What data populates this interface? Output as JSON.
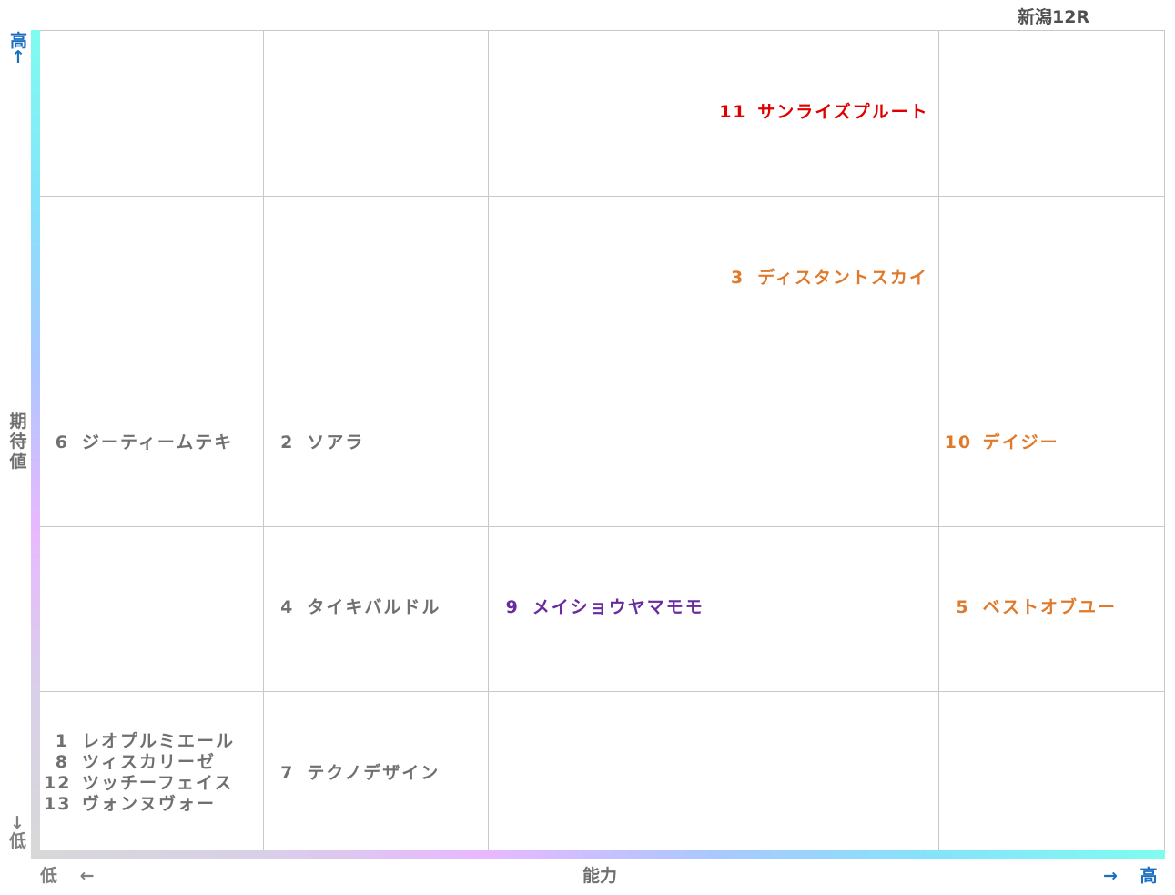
{
  "chart_data": {
    "type": "table",
    "title": "新潟12R",
    "ylabel": "期待値",
    "xlabel": "能力",
    "y_high_label": "高",
    "y_high_arrow": "↑",
    "y_low_label": "低",
    "y_low_arrow": "↓",
    "x_low_label": "低",
    "x_low_arrow": "←",
    "x_high_label": "高",
    "x_high_arrow": "→",
    "columns": 5,
    "rows": 5,
    "entries": [
      {
        "num": "11",
        "name": "サンライズプルート",
        "x": 4,
        "y": 5,
        "color": "#e00000"
      },
      {
        "num": "3",
        "name": "ディスタントスカイ",
        "x": 4,
        "y": 4,
        "color": "#e07a2a"
      },
      {
        "num": "6",
        "name": "ジーティームテキ",
        "x": 1,
        "y": 3,
        "color": "#707070"
      },
      {
        "num": "2",
        "name": "ソアラ",
        "x": 2,
        "y": 3,
        "color": "#707070"
      },
      {
        "num": "10",
        "name": "デイジー",
        "x": 5,
        "y": 3,
        "color": "#e07a2a"
      },
      {
        "num": "4",
        "name": "タイキバルドル",
        "x": 2,
        "y": 2,
        "color": "#707070"
      },
      {
        "num": "9",
        "name": "メイショウヤマモモ",
        "x": 3,
        "y": 2,
        "color": "#6a2aa0"
      },
      {
        "num": "5",
        "name": "ベストオブユー",
        "x": 5,
        "y": 2,
        "color": "#e07a2a"
      },
      {
        "num": "1",
        "name": "レオプルミエール",
        "x": 1,
        "y": 1,
        "color": "#707070"
      },
      {
        "num": "8",
        "name": "ツィスカリーゼ",
        "x": 1,
        "y": 1,
        "color": "#707070"
      },
      {
        "num": "12",
        "name": "ツッチーフェイス",
        "x": 1,
        "y": 1,
        "color": "#707070"
      },
      {
        "num": "13",
        "name": "ヴォンヌヴォー",
        "x": 1,
        "y": 1,
        "color": "#707070"
      },
      {
        "num": "7",
        "name": "テクノデザイン",
        "x": 2,
        "y": 1,
        "color": "#707070"
      }
    ]
  }
}
